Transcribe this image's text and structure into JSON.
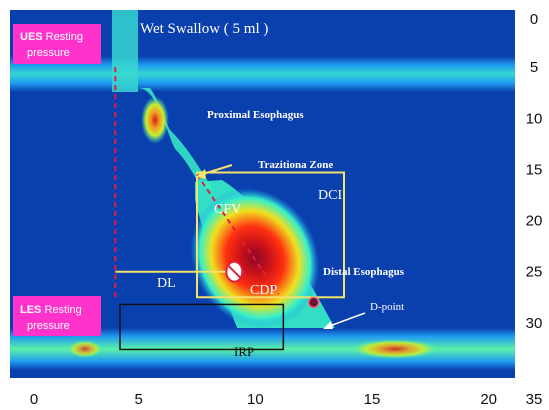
{
  "chart_data": {
    "type": "heatmap",
    "title": "Wet Swallow ( 5 ml )",
    "xlabel": "",
    "ylabel": "",
    "x_ticks": [
      "0",
      "5",
      "10",
      "15",
      "20"
    ],
    "y_ticks": [
      "0",
      "5",
      "10",
      "15",
      "20",
      "25",
      "30",
      "35"
    ],
    "xlim": [
      0,
      21
    ],
    "ylim": [
      0,
      35
    ],
    "colors": {
      "background": "#0a3fae",
      "low": "#1f9bf0",
      "mid": "#36f0c8",
      "warm": "#f0e020",
      "hot": "#e82010",
      "peak": "#8a0a28",
      "line_yellow": "#f3e26b",
      "line_red": "#e0203a",
      "badge": "#ff33cc"
    },
    "badges": [
      {
        "bold": "UES",
        "rest": " Resting",
        "line2": "pressure"
      },
      {
        "bold": "LES",
        "rest": " Resting",
        "line2": "pressure"
      }
    ],
    "annotations": [
      {
        "id": "proximal",
        "text": "Proximal Esophagus"
      },
      {
        "id": "transition",
        "text": "Trazitiona Zone"
      },
      {
        "id": "dci",
        "text": "DCI"
      },
      {
        "id": "cfv",
        "text": "CFV"
      },
      {
        "id": "dl",
        "text": "DL"
      },
      {
        "id": "cdp",
        "text": "CDP"
      },
      {
        "id": "distal",
        "text": "Distal  Esophagus"
      },
      {
        "id": "dpoint",
        "text": "D-point"
      },
      {
        "id": "irp",
        "text": "IRP"
      }
    ],
    "dci_box": {
      "x": [
        7.5,
        13.8
      ],
      "y": [
        15.3,
        27.5
      ]
    },
    "irp_box": {
      "x": [
        4.2,
        11.2
      ],
      "y": [
        28.2,
        32.6
      ]
    },
    "dl_line": {
      "x": [
        4,
        9.1
      ],
      "y": 25
    },
    "cfv_line": {
      "from": [
        7.5,
        15.5
      ],
      "to": [
        11,
        27.2
      ]
    },
    "upper_dashed": {
      "x": 4,
      "y": [
        5,
        27.5
      ]
    },
    "cdp_point": {
      "x": 9.1,
      "y": 25
    },
    "d_point": {
      "x": 12.5,
      "y": 28
    }
  }
}
